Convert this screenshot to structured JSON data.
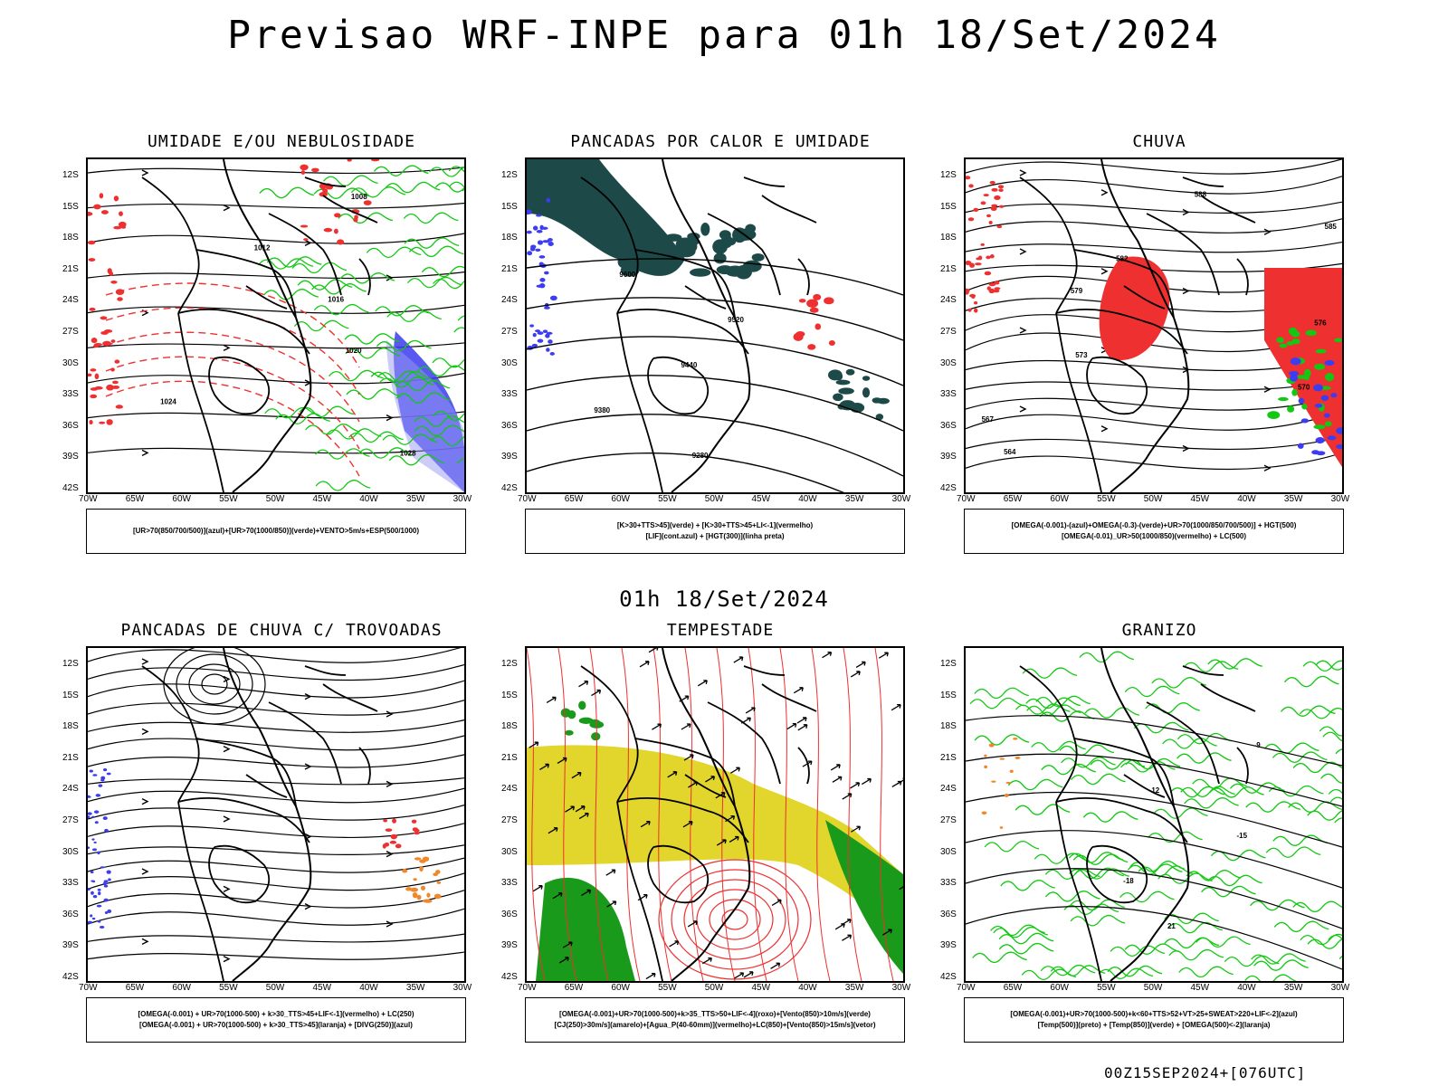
{
  "title": "Previsao WRF-INPE  para 01h 18/Set/2024",
  "subtitle": "01h 18/Set/2024",
  "footer": "00Z15SEP2024+[076UTC]",
  "axes": {
    "lat_labels": [
      "12S",
      "15S",
      "18S",
      "21S",
      "24S",
      "27S",
      "30S",
      "33S",
      "36S",
      "39S",
      "42S"
    ],
    "lon_labels": [
      "70W",
      "65W",
      "60W",
      "55W",
      "50W",
      "45W",
      "40W",
      "35W",
      "30W"
    ]
  },
  "colors": {
    "green": "#12c812",
    "red": "#ee3030",
    "blue": "#3c3cf0",
    "dark_teal": "#1d4a48",
    "yellow": "#e2d52c",
    "orange": "#f0882a",
    "black": "#000000"
  },
  "panels": [
    {
      "key": "umidade",
      "title": "UMIDADE E/OU NEBULOSIDADE",
      "legend": [
        "[UR>70(850/700/500)](azul)+[UR>70(1000/850)](verde)+VENTO>5m/s+ESP(500/1000)"
      ],
      "contour_labels": [
        "1008",
        "1012",
        "1016",
        "1020",
        "1024",
        "1028"
      ]
    },
    {
      "key": "pancadas",
      "title": "PANCADAS POR CALOR E UMIDADE",
      "legend": [
        "[K>30+TTS>45](verde) + [K>30+TTS>45+LI<-1](vermelho)",
        "[LIF](cont.azul) + [HGT(300)](linha preta)"
      ],
      "contour_labels": [
        "9600",
        "9520",
        "9440",
        "9380",
        "9280"
      ]
    },
    {
      "key": "chuva",
      "title": "CHUVA",
      "legend": [
        "[OMEGA(-0.001)-(azul)+OMEGA(-0.3)-(verde)+UR>70(1000/850/700/500)] + HGT(500)",
        "[OMEGA(-0.01)_UR>50(1000/850)(vermelho) + LC(500)"
      ],
      "contour_labels": [
        "588",
        "585",
        "582",
        "579",
        "576",
        "573",
        "570",
        "567",
        "564"
      ]
    },
    {
      "key": "trovoadas",
      "title": "PANCADAS DE CHUVA C/ TROVOADAS",
      "legend": [
        "[OMEGA(-0.001) + UR>70(1000-500) + k>30_TTS>45+LIF<-1](vermelho) + LC(250)",
        "[OMEGA(-0.001) + UR>70(1000-500) + k>30_TTS>45](laranja) + [DIVG(250)](azul)"
      ],
      "contour_labels": []
    },
    {
      "key": "tempestade",
      "title": "TEMPESTADE",
      "legend": [
        "[OMEGA(-0.001)+UR>70(1000-500)+k>35_TTS>50+LIF<-4](roxo)+[Vento(850)>10m/s](verde)",
        "[CJ(250)>30m/s](amarelo)+[Agua_P(40-60mm)](vermelho)+LC(850)+[Vento(850)>15m/s](vetor)"
      ],
      "contour_labels": []
    },
    {
      "key": "granizo",
      "title": "GRANIZO",
      "legend": [
        "[OMEGA(-0.001)+UR>70(1000-500)+k<60+TTS>52+VT>25+SWEAT>220+LIF<-2](azul)",
        "[Temp(500)](preto) + [Temp(850)](verde) + [OMEGA(500)<-2](laranja)"
      ],
      "contour_labels": [
        "-9",
        "-12",
        "-15",
        "-18",
        "21"
      ]
    }
  ],
  "chart_data": {
    "type": "heatmap",
    "title": "Previsao WRF-INPE  para 01h 18/Set/2024",
    "valid_time": "01h 18/Set/2024",
    "run": "00Z15SEP2024+[076UTC]",
    "lat_range": [
      "42S",
      "12S"
    ],
    "lon_range": [
      "70W",
      "30W"
    ],
    "panels": [
      "UMIDADE E/OU NEBULOSIDADE",
      "PANCADAS POR CALOR E UMIDADE",
      "CHUVA",
      "PANCADAS DE CHUVA C/ TROVOADAS",
      "TEMPESTADE",
      "GRANIZO"
    ]
  }
}
